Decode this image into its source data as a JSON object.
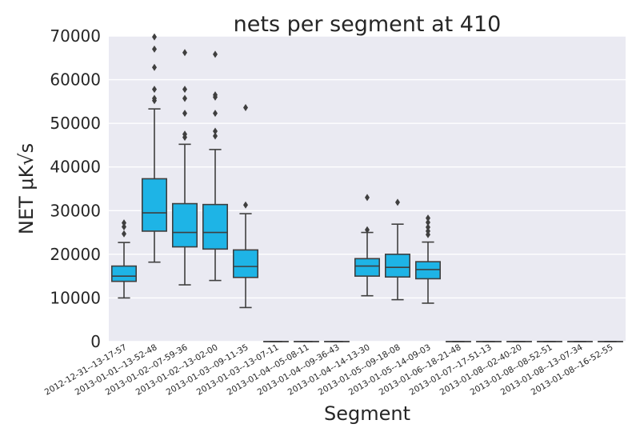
{
  "chart_data": {
    "type": "box",
    "title": "nets per segment at 410",
    "xlabel": "Segment",
    "ylabel": "NET μK√s",
    "ylim": [
      0,
      70000
    ],
    "yticks": [
      0,
      10000,
      20000,
      30000,
      40000,
      50000,
      60000,
      70000
    ],
    "box_color": "#1eb4e6",
    "plot_bg": "#eaeaf2",
    "grid": true,
    "categories": [
      "2012-12-31--13-17-57",
      "2013-01-01--13-52-48",
      "2013-01-02--07-59-36",
      "2013-01-02--13-02-00",
      "2013-01-03--09-11-35",
      "2013-01-03--13-07-11",
      "2013-01-04--05-08-11",
      "2013-01-04--09-36-43",
      "2013-01-04--14-13-30",
      "2013-01-05--09-18-08",
      "2013-01-05--14-09-03",
      "2013-01-06--18-21-48",
      "2013-01-07--17-51-13",
      "2013-01-08--02-40-20",
      "2013-01-08--08-52-51",
      "2013-01-08--13-07-34",
      "2013-01-08--16-52-55"
    ],
    "boxes": [
      {
        "whislo": 10000,
        "q1": 13800,
        "med": 15000,
        "q3": 17300,
        "whishi": 22700,
        "fliers": [
          24700,
          26300,
          27200
        ]
      },
      {
        "whislo": 18200,
        "q1": 25300,
        "med": 29500,
        "q3": 37300,
        "whishi": 53300,
        "fliers": [
          55200,
          55700,
          57800,
          62800,
          67000,
          69800
        ]
      },
      {
        "whislo": 13000,
        "q1": 21700,
        "med": 25000,
        "q3": 31600,
        "whishi": 45200,
        "fliers": [
          46800,
          47500,
          52300,
          55700,
          57800,
          66200
        ]
      },
      {
        "whislo": 14000,
        "q1": 21200,
        "med": 25000,
        "q3": 31400,
        "whishi": 44000,
        "fliers": [
          47100,
          48200,
          52300,
          56000,
          56500,
          65800
        ]
      },
      {
        "whislo": 7800,
        "q1": 14700,
        "med": 17200,
        "q3": 21000,
        "whishi": 29300,
        "fliers": [
          31300,
          53600
        ]
      },
      {
        "whislo": 0,
        "q1": 0,
        "med": 0,
        "q3": 0,
        "whishi": 0,
        "fliers": []
      },
      {
        "whislo": 0,
        "q1": 0,
        "med": 0,
        "q3": 0,
        "whishi": 0,
        "fliers": []
      },
      {
        "whislo": 0,
        "q1": 0,
        "med": 0,
        "q3": 0,
        "whishi": 0,
        "fliers": []
      },
      {
        "whislo": 10500,
        "q1": 15000,
        "med": 17300,
        "q3": 19000,
        "whishi": 25000,
        "fliers": [
          25600,
          33000
        ]
      },
      {
        "whislo": 9600,
        "q1": 14800,
        "med": 17000,
        "q3": 20000,
        "whishi": 26900,
        "fliers": [
          31900
        ]
      },
      {
        "whislo": 8800,
        "q1": 14400,
        "med": 16500,
        "q3": 18300,
        "whishi": 22800,
        "fliers": [
          24500,
          25300,
          26200,
          27300,
          28300
        ]
      },
      {
        "whislo": 0,
        "q1": 0,
        "med": 0,
        "q3": 0,
        "whishi": 0,
        "fliers": []
      },
      {
        "whislo": 0,
        "q1": 0,
        "med": 0,
        "q3": 0,
        "whishi": 0,
        "fliers": []
      },
      {
        "whislo": 0,
        "q1": 0,
        "med": 0,
        "q3": 0,
        "whishi": 0,
        "fliers": []
      },
      {
        "whislo": 0,
        "q1": 0,
        "med": 0,
        "q3": 0,
        "whishi": 0,
        "fliers": []
      },
      {
        "whislo": 0,
        "q1": 0,
        "med": 0,
        "q3": 0,
        "whishi": 0,
        "fliers": []
      },
      {
        "whislo": 0,
        "q1": 0,
        "med": 0,
        "q3": 0,
        "whishi": 0,
        "fliers": []
      }
    ]
  }
}
